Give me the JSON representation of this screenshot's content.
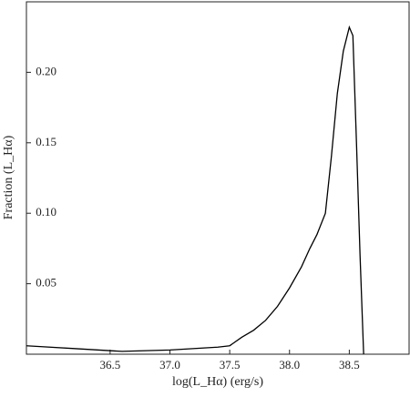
{
  "chart_data": {
    "type": "line",
    "xlabel": "log(L_Hα) (erg/s)",
    "ylabel": "Fraction (L_Hα)",
    "x": [
      35.8,
      36.2,
      36.6,
      37.0,
      37.4,
      37.5,
      37.6,
      37.7,
      37.8,
      37.9,
      38.0,
      38.1,
      38.17,
      38.23,
      38.3,
      38.35,
      38.4,
      38.45,
      38.5,
      38.53,
      38.56,
      38.59,
      38.62
    ],
    "series": [
      {
        "color": "#000000",
        "values": [
          0.006,
          0.004,
          0.002,
          0.003,
          0.005,
          0.006,
          0.012,
          0.017,
          0.024,
          0.034,
          0.047,
          0.062,
          0.075,
          0.085,
          0.1,
          0.14,
          0.185,
          0.215,
          0.232,
          0.226,
          0.15,
          0.07,
          0.0
        ]
      }
    ],
    "xlim": [
      35.8,
      39.0
    ],
    "ylim": [
      0,
      0.25
    ],
    "xticks": [
      {
        "value": 36.5,
        "label": "36.5"
      },
      {
        "value": 37.0,
        "label": "37.0"
      },
      {
        "value": 37.5,
        "label": "37.5"
      },
      {
        "value": 38.0,
        "label": "38.0"
      },
      {
        "value": 38.5,
        "label": "38.5"
      }
    ],
    "yticks": [
      0.05,
      {
        "value": 0.1,
        "label": "0.10"
      },
      0.15,
      {
        "value": 0.2,
        "label": "0.20"
      }
    ]
  }
}
